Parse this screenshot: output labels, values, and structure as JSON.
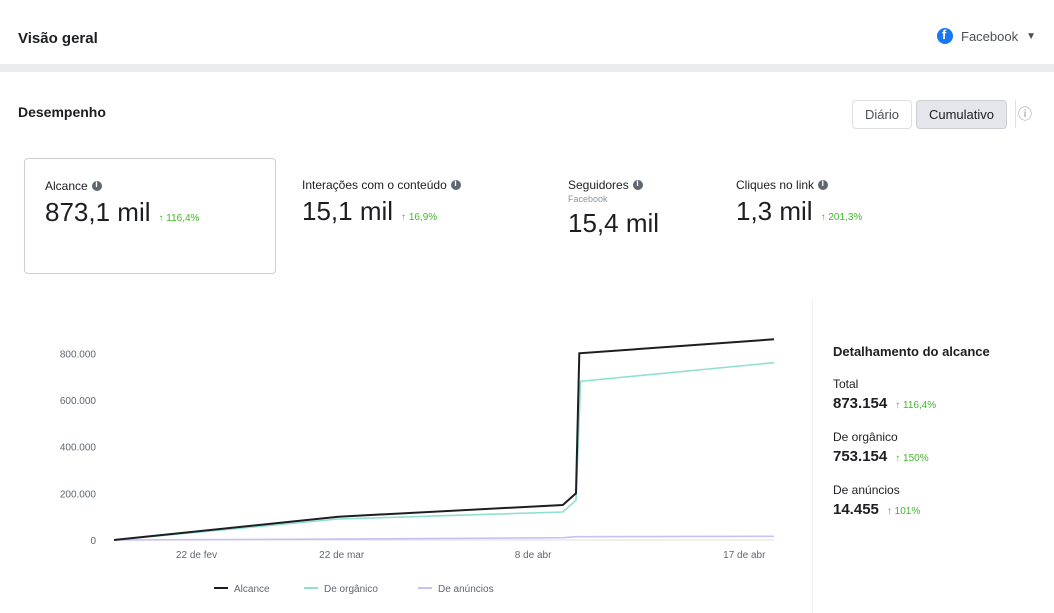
{
  "header": {
    "title": "Visão geral",
    "account_label": "Facebook"
  },
  "performance": {
    "title": "Desempenho",
    "toggle": [
      "Diário",
      "Cumulativo"
    ],
    "active_toggle": 1
  },
  "metrics": [
    {
      "label": "Alcance",
      "value": "873,1 mil",
      "change": "↑ 116,4%",
      "selected": true
    },
    {
      "label": "Interações com o conteúdo",
      "value": "15,1 mil",
      "change": "↑ 16,9%"
    },
    {
      "label": "Seguidores",
      "sub": "Facebook",
      "value": "15,4 mil"
    },
    {
      "label": "Cliques no link",
      "value": "1,3 mil",
      "change": "↑ 201,3%"
    }
  ],
  "chart_data": {
    "type": "line",
    "y_ticks": [
      "0",
      "200.000",
      "400.000",
      "600.000",
      "800.000"
    ],
    "ylim": [
      0,
      900000
    ],
    "x_ticks": [
      {
        "label": "22 de fev",
        "pos": 0.125
      },
      {
        "label": "22 de mar",
        "pos": 0.345
      },
      {
        "label": "8 de abr",
        "pos": 0.635
      },
      {
        "label": "17 de abr",
        "pos": 0.955
      }
    ],
    "series": [
      {
        "name": "Alcance",
        "color": "#1c1e21",
        "points": [
          [
            0,
            0
          ],
          [
            0.34,
            100000
          ],
          [
            0.68,
            150000
          ],
          [
            0.7,
            200000
          ],
          [
            0.705,
            800000
          ],
          [
            1.0,
            860000
          ]
        ]
      },
      {
        "name": "De orgânico",
        "color": "#8fe0d3",
        "points": [
          [
            0,
            0
          ],
          [
            0.34,
            90000
          ],
          [
            0.68,
            120000
          ],
          [
            0.7,
            170000
          ],
          [
            0.707,
            680000
          ],
          [
            1.0,
            760000
          ]
        ]
      },
      {
        "name": "De anúncios",
        "color": "#c9c0f5",
        "points": [
          [
            0,
            0
          ],
          [
            0.34,
            4000
          ],
          [
            0.68,
            10000
          ],
          [
            0.7,
            14000
          ],
          [
            1.0,
            16000
          ]
        ]
      }
    ],
    "legend_position": "bottom"
  },
  "breakdown": {
    "title": "Detalhamento do alcance",
    "items": [
      {
        "label": "Total",
        "value": "873.154",
        "change": "↑ 116,4%"
      },
      {
        "label": "De orgânico",
        "value": "753.154",
        "change": "↑ 150%"
      },
      {
        "label": "De anúncios",
        "value": "14.455",
        "change": "↑ 101%"
      }
    ]
  }
}
